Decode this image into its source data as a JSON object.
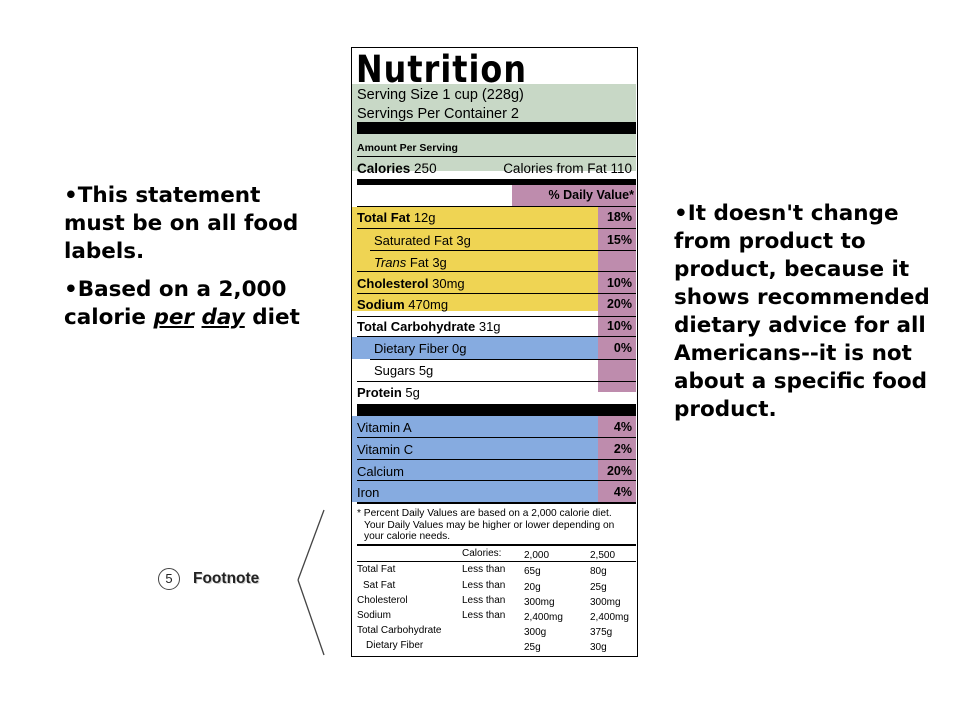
{
  "left_bullets": {
    "item1": "•This statement must be on all food labels.",
    "item2_prefix": "•Based on a 2,000 calorie ",
    "item2_em1": "per",
    "item2_em2": "day",
    "item2_suffix": " diet"
  },
  "right_bullets": {
    "item1": "•It doesn't change from product to product, because it shows recommended dietary advice for all Americans--it is not about a specific food product."
  },
  "label": {
    "title": "Nutrition Facts",
    "serving_size": "Serving Size 1 cup (228g)",
    "servings_per_container": "Servings Per Container  2",
    "amount_per_serving": "Amount Per Serving",
    "calories_label": "Calories",
    "calories_value": "250",
    "calories_from_fat": "Calories from Fat 110",
    "dv_header": "% Daily Value*",
    "nutrients": [
      {
        "label": "Total Fat",
        "amount": "12g",
        "pct": "18%"
      },
      {
        "label": "Saturated Fat",
        "amount": "3g",
        "pct": "15%"
      },
      {
        "label": "Trans",
        "label2": "Fat",
        "amount": "3g",
        "pct": ""
      },
      {
        "label": "Cholesterol",
        "amount": "30mg",
        "pct": "10%"
      },
      {
        "label": "Sodium",
        "amount": "470mg",
        "pct": "20%"
      },
      {
        "label": "Total Carbohydrate",
        "amount": "31g",
        "pct": "10%"
      },
      {
        "label": "Dietary Fiber",
        "amount": "0g",
        "pct": "0%"
      },
      {
        "label": "Sugars",
        "amount": "5g",
        "pct": ""
      },
      {
        "label": "Protein",
        "amount": "5g",
        "pct": ""
      }
    ],
    "vitamins": [
      {
        "label": "Vitamin A",
        "pct": "4%"
      },
      {
        "label": "Vitamin C",
        "pct": "2%"
      },
      {
        "label": "Calcium",
        "pct": "20%"
      },
      {
        "label": "Iron",
        "pct": "4%"
      }
    ],
    "footnote_line1": "* Percent Daily Values are based on a 2,000 calorie diet.",
    "footnote_line2": "Your Daily Values may be higher or lower depending on",
    "footnote_line3": "your calorie needs.",
    "table": {
      "calories_label": "Calories:",
      "col1": "2,000",
      "col2": "2,500",
      "rows": [
        {
          "name": "Total Fat",
          "q": "Less than",
          "a": "65g",
          "b": "80g"
        },
        {
          "name": "Sat Fat",
          "q": "Less than",
          "a": "20g",
          "b": "25g"
        },
        {
          "name": "Cholesterol",
          "q": "Less than",
          "a": "300mg",
          "b": "300mg"
        },
        {
          "name": "Sodium",
          "q": "Less than",
          "a": "2,400mg",
          "b": "2,400mg"
        },
        {
          "name": "Total Carbohydrate",
          "q": "",
          "a": "300g",
          "b": "375g"
        },
        {
          "name": "Dietary Fiber",
          "q": "",
          "a": "25g",
          "b": "30g"
        }
      ]
    }
  },
  "callout": {
    "number": "5",
    "label": "Footnote"
  }
}
